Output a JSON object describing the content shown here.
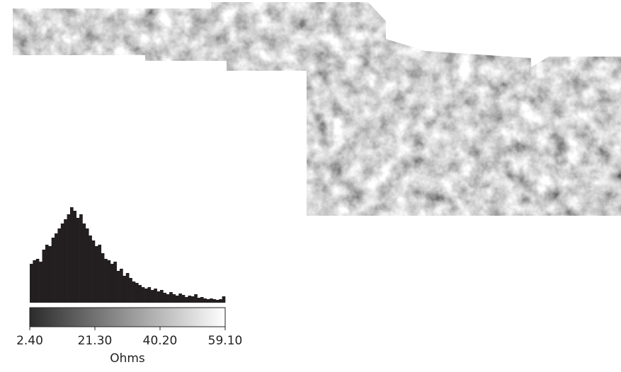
{
  "chart_data": {
    "type": "histogram",
    "bins": [
      2.4,
      3.3,
      4.2,
      5.1,
      6.0,
      6.9,
      7.8,
      8.7,
      9.6,
      10.5,
      11.4,
      12.3,
      13.2,
      14.1,
      15.0,
      15.9,
      16.8,
      17.7,
      18.6,
      19.5,
      20.4,
      21.3,
      22.2,
      23.1,
      24.0,
      24.9,
      25.8,
      26.7,
      27.6,
      28.5,
      29.4,
      30.3,
      31.2,
      32.1,
      33.0,
      33.9,
      34.8,
      35.7,
      36.6,
      37.5,
      38.4,
      39.3,
      40.2,
      41.1,
      42.0,
      42.9,
      43.8,
      44.7,
      45.6,
      46.5,
      47.4,
      48.3,
      49.2,
      50.1,
      51.0,
      51.9,
      52.8,
      53.7,
      54.6,
      55.5,
      56.4,
      57.3,
      58.2,
      59.1
    ],
    "values": [
      55,
      60,
      62,
      58,
      75,
      82,
      80,
      92,
      98,
      105,
      112,
      118,
      125,
      135,
      130,
      120,
      125,
      112,
      105,
      95,
      88,
      80,
      82,
      70,
      62,
      60,
      55,
      58,
      45,
      48,
      38,
      42,
      35,
      30,
      28,
      25,
      22,
      20,
      22,
      18,
      20,
      16,
      18,
      14,
      12,
      15,
      12,
      10,
      13,
      11,
      8,
      10,
      9,
      12,
      7,
      8,
      6,
      5,
      6,
      5,
      4,
      5,
      9
    ],
    "color": "#231f20",
    "xlim": [
      2.4,
      59.1
    ],
    "xticks": [
      {
        "value": 2.4,
        "label": "2.40"
      },
      {
        "value": 21.3,
        "label": "21.30"
      },
      {
        "value": 40.2,
        "label": "40.20"
      },
      {
        "value": 59.1,
        "label": "59.10"
      }
    ],
    "xlabel": "Ohms",
    "colormap": [
      "#2b2b2b",
      "#ffffff"
    ]
  }
}
